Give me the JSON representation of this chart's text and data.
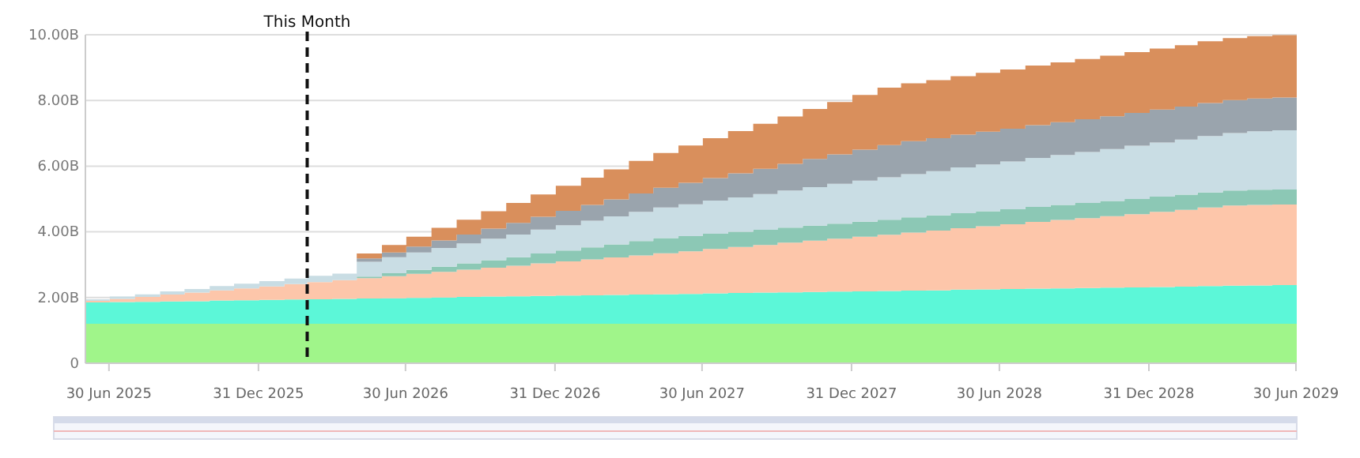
{
  "chart_data": {
    "type": "area",
    "stacked": true,
    "grid": "y",
    "x": [
      "2025-06-01",
      "2025-07-01",
      "2025-08-01",
      "2025-09-01",
      "2025-10-01",
      "2025-11-01",
      "2025-12-01",
      "2026-01-01",
      "2026-02-01",
      "2026-03-01",
      "2026-04-01",
      "2026-05-01",
      "2026-06-01",
      "2026-07-01",
      "2026-08-01",
      "2026-09-01",
      "2026-10-01",
      "2026-11-01",
      "2026-12-01",
      "2027-01-01",
      "2027-02-01",
      "2027-03-01",
      "2027-04-01",
      "2027-05-01",
      "2027-06-01",
      "2027-07-01",
      "2027-08-01",
      "2027-09-01",
      "2027-10-01",
      "2027-11-01",
      "2027-12-01",
      "2028-01-01",
      "2028-02-01",
      "2028-03-01",
      "2028-04-01",
      "2028-05-01",
      "2028-06-01",
      "2028-07-01",
      "2028-08-01",
      "2028-09-01",
      "2028-10-01",
      "2028-11-01",
      "2028-12-01",
      "2029-01-01",
      "2029-02-01",
      "2029-03-01",
      "2029-04-01",
      "2029-05-01",
      "2029-06-01",
      "2029-07-01"
    ],
    "series": [
      {
        "color": "#a0f58a",
        "values": [
          1.2,
          1.2,
          1.2,
          1.2,
          1.2,
          1.2,
          1.2,
          1.2,
          1.2,
          1.2,
          1.2,
          1.2,
          1.2,
          1.2,
          1.2,
          1.2,
          1.2,
          1.2,
          1.2,
          1.2,
          1.2,
          1.2,
          1.2,
          1.2,
          1.2,
          1.2,
          1.2,
          1.2,
          1.2,
          1.2,
          1.2,
          1.2,
          1.2,
          1.2,
          1.2,
          1.2,
          1.2,
          1.2,
          1.2,
          1.2,
          1.2,
          1.2,
          1.2,
          1.2,
          1.2,
          1.2,
          1.2,
          1.2,
          1.2,
          1.2
        ]
      },
      {
        "color": "#5cf7d8",
        "values": [
          0.65,
          0.66,
          0.67,
          0.68,
          0.69,
          0.71,
          0.72,
          0.73,
          0.74,
          0.75,
          0.76,
          0.77,
          0.78,
          0.79,
          0.8,
          0.82,
          0.83,
          0.84,
          0.85,
          0.86,
          0.87,
          0.88,
          0.89,
          0.9,
          0.91,
          0.93,
          0.94,
          0.95,
          0.96,
          0.97,
          0.98,
          0.99,
          1.0,
          1.01,
          1.02,
          1.04,
          1.05,
          1.06,
          1.07,
          1.08,
          1.09,
          1.1,
          1.11,
          1.12,
          1.13,
          1.15,
          1.16,
          1.17,
          1.18,
          1.19
        ]
      },
      {
        "color": "#fdc6aa",
        "values": [
          0.05,
          0.1,
          0.15,
          0.21,
          0.26,
          0.31,
          0.36,
          0.41,
          0.47,
          0.52,
          0.57,
          0.62,
          0.67,
          0.73,
          0.78,
          0.83,
          0.88,
          0.93,
          0.99,
          1.04,
          1.09,
          1.14,
          1.19,
          1.25,
          1.3,
          1.35,
          1.4,
          1.45,
          1.51,
          1.56,
          1.61,
          1.66,
          1.71,
          1.77,
          1.82,
          1.87,
          1.92,
          1.97,
          2.03,
          2.08,
          2.13,
          2.18,
          2.23,
          2.29,
          2.34,
          2.39,
          2.44,
          2.45,
          2.45,
          2.45
        ]
      },
      {
        "color": "#8cc8b5",
        "values": [
          0,
          0,
          0,
          0,
          0,
          0,
          0,
          0,
          0,
          0,
          0,
          0.05,
          0.09,
          0.12,
          0.16,
          0.19,
          0.23,
          0.26,
          0.3,
          0.33,
          0.37,
          0.4,
          0.44,
          0.46,
          0.46,
          0.46,
          0.46,
          0.46,
          0.46,
          0.46,
          0.46,
          0.46,
          0.46,
          0.46,
          0.46,
          0.46,
          0.46,
          0.46,
          0.46,
          0.46,
          0.46,
          0.46,
          0.46,
          0.46,
          0.46,
          0.46,
          0.46,
          0.46,
          0.46,
          0.46
        ]
      },
      {
        "color": "#c9dde4",
        "values": [
          0.05,
          0.07,
          0.08,
          0.1,
          0.11,
          0.13,
          0.14,
          0.16,
          0.17,
          0.19,
          0.2,
          0.45,
          0.49,
          0.53,
          0.57,
          0.61,
          0.65,
          0.69,
          0.73,
          0.77,
          0.81,
          0.85,
          0.89,
          0.93,
          0.97,
          1.01,
          1.05,
          1.09,
          1.13,
          1.17,
          1.21,
          1.25,
          1.29,
          1.32,
          1.35,
          1.39,
          1.42,
          1.45,
          1.49,
          1.52,
          1.55,
          1.58,
          1.62,
          1.65,
          1.68,
          1.72,
          1.75,
          1.78,
          1.8,
          1.8
        ]
      },
      {
        "color": "#9aa4ad",
        "values": [
          0,
          0,
          0,
          0,
          0,
          0,
          0,
          0,
          0,
          0,
          0,
          0.1,
          0.14,
          0.18,
          0.23,
          0.27,
          0.31,
          0.35,
          0.39,
          0.44,
          0.48,
          0.52,
          0.56,
          0.6,
          0.65,
          0.69,
          0.73,
          0.77,
          0.81,
          0.86,
          0.9,
          0.94,
          0.98,
          1.0,
          1.0,
          1.0,
          1.0,
          1.0,
          1.0,
          1.0,
          1.0,
          1.0,
          1.0,
          1.0,
          1.0,
          1.0,
          1.0,
          1.0,
          1.0,
          1.0
        ]
      },
      {
        "color": "#d98f5c",
        "values": [
          0,
          0,
          0,
          0,
          0,
          0,
          0,
          0,
          0,
          0,
          0,
          0.15,
          0.23,
          0.3,
          0.38,
          0.45,
          0.53,
          0.61,
          0.68,
          0.76,
          0.83,
          0.91,
          0.99,
          1.06,
          1.14,
          1.21,
          1.29,
          1.37,
          1.44,
          1.52,
          1.59,
          1.67,
          1.75,
          1.76,
          1.77,
          1.78,
          1.79,
          1.8,
          1.81,
          1.82,
          1.83,
          1.84,
          1.85,
          1.86,
          1.87,
          1.88,
          1.89,
          1.9,
          1.9,
          1.9
        ]
      }
    ],
    "xlim": [
      "2025-06-01",
      "2029-07-01"
    ],
    "xticks": [
      {
        "value": "2025-06-30",
        "label": "30 Jun 2025"
      },
      {
        "value": "2025-12-31",
        "label": "31 Dec 2025"
      },
      {
        "value": "2026-06-30",
        "label": "30 Jun 2026"
      },
      {
        "value": "2026-12-31",
        "label": "31 Dec 2026"
      },
      {
        "value": "2027-06-30",
        "label": "30 Jun 2027"
      },
      {
        "value": "2027-12-31",
        "label": "31 Dec 2027"
      },
      {
        "value": "2028-06-30",
        "label": "30 Jun 2028"
      },
      {
        "value": "2028-12-31",
        "label": "31 Dec 2028"
      },
      {
        "value": "2029-06-30",
        "label": "30 Jun 2029"
      }
    ],
    "ylim": [
      0,
      10
    ],
    "yticks": [
      0,
      {
        "value": 2,
        "label": "2.00B"
      },
      {
        "value": 4,
        "label": "4.00B"
      },
      {
        "value": 6,
        "label": "6.00B"
      },
      {
        "value": 8,
        "label": "8.00B"
      },
      {
        "value": 10,
        "label": "10.00B"
      }
    ],
    "ref_lines": [
      {
        "axis": "x",
        "value": "2026-03-01",
        "label": "This Month",
        "color": "#111111",
        "line_style": "dashed"
      }
    ]
  }
}
